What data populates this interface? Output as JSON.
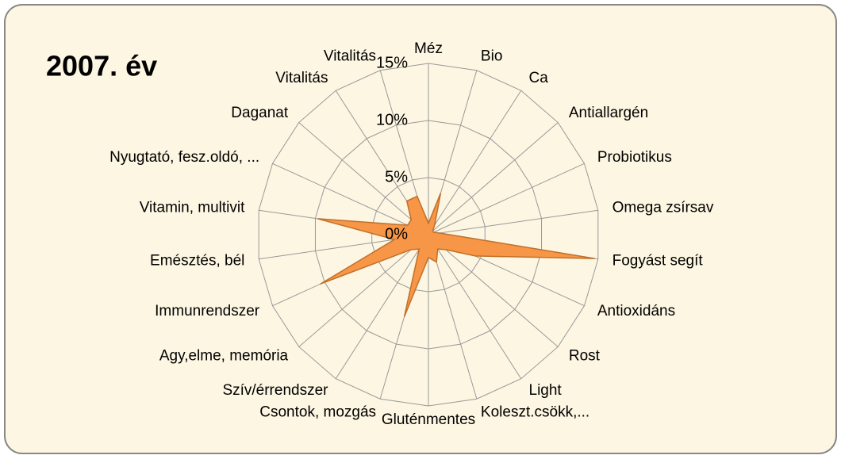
{
  "chart_data": {
    "type": "radar",
    "title": "2007. év",
    "categories": [
      "Méz",
      "Bio",
      "Ca",
      "Antiallargén",
      "Probiotikus",
      "Omega zsírsav",
      "Fogyást segít",
      "Antioxidáns",
      "Rost",
      "Light",
      "Koleszt.csökk,...",
      "Gluténmentes",
      "Csontok, mozgás",
      "Szív/érrendszer",
      "Agy,elme, memória",
      "Immunrendszer",
      "Emésztés, bél",
      "Vitamin, multivit",
      "Nyugtató, fesz.oldó, ...",
      "Daganat",
      "Vitalitás",
      "Vitalitás"
    ],
    "values": [
      1,
      3.8,
      1,
      0.5,
      0.5,
      1,
      14.7,
      4.5,
      2,
      1.5,
      2.5,
      2,
      7.5,
      1.5,
      2,
      10.4,
      3,
      9.8,
      2,
      2,
      3.5,
      3.5
    ],
    "color": "#f79646",
    "rlim": [
      0,
      15
    ],
    "rticks": [
      {
        "value": 0,
        "label": "0%"
      },
      {
        "value": 5,
        "label": "5%"
      },
      {
        "value": 10,
        "label": "10%"
      },
      {
        "value": 15,
        "label": "15%"
      }
    ],
    "grid": true
  }
}
